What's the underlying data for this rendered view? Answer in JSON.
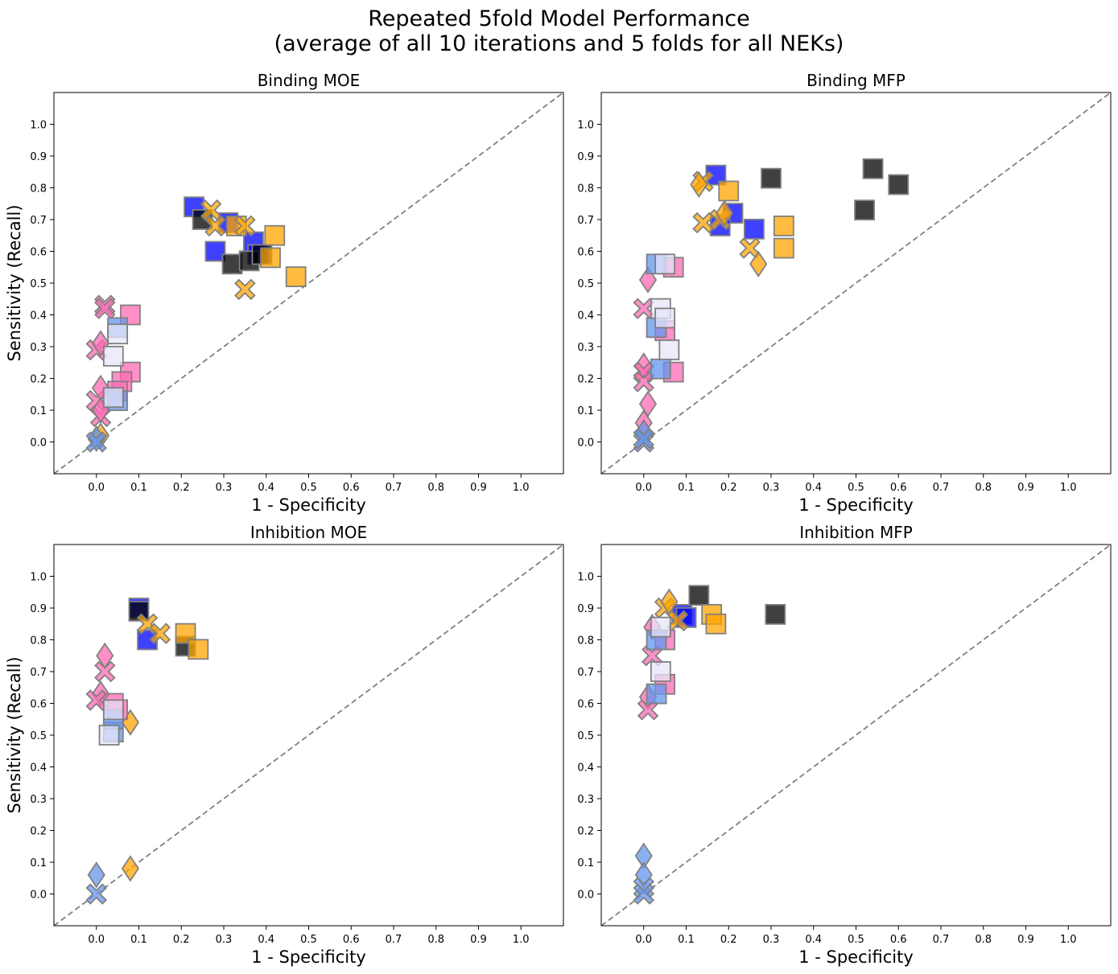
{
  "figure": {
    "title_line1": "Repeated 5fold Model Performance",
    "title_line2": "(average of all 10 iterations and 5 folds for all NEKs)"
  },
  "colors": {
    "blue": "#0000ff",
    "black": "#000000",
    "orange": "#ffa500",
    "pink": "#ff69b4",
    "lightblue": "#6495ed",
    "lavender": "#e6e6fa",
    "marker_edge": "#808080",
    "diagonal": "#808080"
  },
  "chart_data": [
    {
      "type": "scatter",
      "title": "Binding MOE",
      "xlabel": "1 - Specificity",
      "ylabel": "Sensitivity (Recall)",
      "xlim": [
        -0.1,
        1.1
      ],
      "ylim": [
        -0.1,
        1.1
      ],
      "xticks": [
        "0.0",
        "0.1",
        "0.2",
        "0.3",
        "0.4",
        "0.5",
        "0.6",
        "0.7",
        "0.8",
        "0.9",
        "1.0"
      ],
      "yticks": [
        "0.0",
        "0.1",
        "0.2",
        "0.3",
        "0.4",
        "0.5",
        "0.6",
        "0.7",
        "0.8",
        "0.9",
        "1.0"
      ],
      "reference_line": "diagonal y = x, dashed",
      "points": [
        {
          "x": 0.23,
          "y": 0.74,
          "marker": "square",
          "color": "blue"
        },
        {
          "x": 0.31,
          "y": 0.69,
          "marker": "square",
          "color": "blue"
        },
        {
          "x": 0.28,
          "y": 0.6,
          "marker": "square",
          "color": "blue"
        },
        {
          "x": 0.37,
          "y": 0.63,
          "marker": "square",
          "color": "blue"
        },
        {
          "x": 0.38,
          "y": 0.59,
          "marker": "square",
          "color": "blue"
        },
        {
          "x": 0.25,
          "y": 0.7,
          "marker": "square",
          "color": "black"
        },
        {
          "x": 0.32,
          "y": 0.56,
          "marker": "square",
          "color": "black"
        },
        {
          "x": 0.36,
          "y": 0.57,
          "marker": "square",
          "color": "black"
        },
        {
          "x": 0.39,
          "y": 0.59,
          "marker": "square",
          "color": "black"
        },
        {
          "x": 0.42,
          "y": 0.65,
          "marker": "square",
          "color": "orange"
        },
        {
          "x": 0.41,
          "y": 0.58,
          "marker": "square",
          "color": "orange"
        },
        {
          "x": 0.47,
          "y": 0.52,
          "marker": "square",
          "color": "orange"
        },
        {
          "x": 0.33,
          "y": 0.68,
          "marker": "square",
          "color": "orange"
        },
        {
          "x": 0.27,
          "y": 0.73,
          "marker": "x",
          "color": "orange"
        },
        {
          "x": 0.28,
          "y": 0.68,
          "marker": "x",
          "color": "orange"
        },
        {
          "x": 0.35,
          "y": 0.68,
          "marker": "x",
          "color": "orange"
        },
        {
          "x": 0.35,
          "y": 0.48,
          "marker": "x",
          "color": "orange"
        },
        {
          "x": 0.01,
          "y": 0.02,
          "marker": "diamond",
          "color": "orange"
        },
        {
          "x": 0.08,
          "y": 0.4,
          "marker": "square",
          "color": "pink"
        },
        {
          "x": 0.08,
          "y": 0.22,
          "marker": "square",
          "color": "pink"
        },
        {
          "x": 0.06,
          "y": 0.19,
          "marker": "square",
          "color": "pink"
        },
        {
          "x": 0.05,
          "y": 0.16,
          "marker": "square",
          "color": "pink"
        },
        {
          "x": 0.02,
          "y": 0.43,
          "marker": "x",
          "color": "pink"
        },
        {
          "x": 0.02,
          "y": 0.42,
          "marker": "x",
          "color": "pink"
        },
        {
          "x": 0.0,
          "y": 0.29,
          "marker": "x",
          "color": "pink"
        },
        {
          "x": 0.0,
          "y": 0.13,
          "marker": "x",
          "color": "pink"
        },
        {
          "x": 0.01,
          "y": 0.08,
          "marker": "x",
          "color": "pink"
        },
        {
          "x": 0.01,
          "y": 0.31,
          "marker": "diamond",
          "color": "pink"
        },
        {
          "x": 0.01,
          "y": 0.17,
          "marker": "diamond",
          "color": "pink"
        },
        {
          "x": 0.01,
          "y": 0.1,
          "marker": "diamond",
          "color": "pink"
        },
        {
          "x": 0.05,
          "y": 0.36,
          "marker": "square",
          "color": "lightblue"
        },
        {
          "x": 0.04,
          "y": 0.14,
          "marker": "square",
          "color": "lightblue"
        },
        {
          "x": 0.05,
          "y": 0.13,
          "marker": "square",
          "color": "lightblue"
        },
        {
          "x": 0.0,
          "y": 0.01,
          "marker": "diamond",
          "color": "lightblue"
        },
        {
          "x": 0.0,
          "y": 0.0,
          "marker": "x",
          "color": "lightblue"
        },
        {
          "x": 0.05,
          "y": 0.34,
          "marker": "square",
          "color": "lavender"
        },
        {
          "x": 0.04,
          "y": 0.27,
          "marker": "square",
          "color": "lavender"
        },
        {
          "x": 0.04,
          "y": 0.14,
          "marker": "square",
          "color": "lavender"
        }
      ]
    },
    {
      "type": "scatter",
      "title": "Binding MFP",
      "xlabel": "1 - Specificity",
      "ylabel": "",
      "xlim": [
        -0.1,
        1.1
      ],
      "ylim": [
        -0.1,
        1.1
      ],
      "xticks": [
        "0.0",
        "0.1",
        "0.2",
        "0.3",
        "0.4",
        "0.5",
        "0.6",
        "0.7",
        "0.8",
        "0.9",
        "1.0"
      ],
      "yticks": [
        "0.0",
        "0.1",
        "0.2",
        "0.3",
        "0.4",
        "0.5",
        "0.6",
        "0.7",
        "0.8",
        "0.9",
        "1.0"
      ],
      "reference_line": "diagonal y = x, dashed",
      "points": [
        {
          "x": 0.17,
          "y": 0.84,
          "marker": "square",
          "color": "blue"
        },
        {
          "x": 0.21,
          "y": 0.72,
          "marker": "square",
          "color": "blue"
        },
        {
          "x": 0.18,
          "y": 0.68,
          "marker": "square",
          "color": "blue"
        },
        {
          "x": 0.26,
          "y": 0.67,
          "marker": "square",
          "color": "blue"
        },
        {
          "x": 0.3,
          "y": 0.83,
          "marker": "square",
          "color": "black"
        },
        {
          "x": 0.54,
          "y": 0.86,
          "marker": "square",
          "color": "black"
        },
        {
          "x": 0.6,
          "y": 0.81,
          "marker": "square",
          "color": "black"
        },
        {
          "x": 0.52,
          "y": 0.73,
          "marker": "square",
          "color": "black"
        },
        {
          "x": 0.2,
          "y": 0.79,
          "marker": "square",
          "color": "orange"
        },
        {
          "x": 0.33,
          "y": 0.68,
          "marker": "square",
          "color": "orange"
        },
        {
          "x": 0.33,
          "y": 0.61,
          "marker": "square",
          "color": "orange"
        },
        {
          "x": 0.14,
          "y": 0.82,
          "marker": "x",
          "color": "orange"
        },
        {
          "x": 0.14,
          "y": 0.69,
          "marker": "x",
          "color": "orange"
        },
        {
          "x": 0.18,
          "y": 0.7,
          "marker": "x",
          "color": "orange"
        },
        {
          "x": 0.25,
          "y": 0.61,
          "marker": "x",
          "color": "orange"
        },
        {
          "x": 0.13,
          "y": 0.81,
          "marker": "diamond",
          "color": "orange"
        },
        {
          "x": 0.19,
          "y": 0.72,
          "marker": "diamond",
          "color": "orange"
        },
        {
          "x": 0.27,
          "y": 0.56,
          "marker": "diamond",
          "color": "orange"
        },
        {
          "x": 0.07,
          "y": 0.55,
          "marker": "square",
          "color": "pink"
        },
        {
          "x": 0.05,
          "y": 0.35,
          "marker": "square",
          "color": "pink"
        },
        {
          "x": 0.07,
          "y": 0.22,
          "marker": "square",
          "color": "pink"
        },
        {
          "x": 0.01,
          "y": 0.51,
          "marker": "diamond",
          "color": "pink"
        },
        {
          "x": 0.01,
          "y": 0.12,
          "marker": "diamond",
          "color": "pink"
        },
        {
          "x": 0.0,
          "y": 0.24,
          "marker": "diamond",
          "color": "pink"
        },
        {
          "x": 0.0,
          "y": 0.06,
          "marker": "diamond",
          "color": "pink"
        },
        {
          "x": 0.0,
          "y": 0.42,
          "marker": "x",
          "color": "pink"
        },
        {
          "x": 0.0,
          "y": 0.22,
          "marker": "x",
          "color": "pink"
        },
        {
          "x": 0.0,
          "y": 0.19,
          "marker": "x",
          "color": "pink"
        },
        {
          "x": 0.03,
          "y": 0.56,
          "marker": "square",
          "color": "lightblue"
        },
        {
          "x": 0.03,
          "y": 0.36,
          "marker": "square",
          "color": "lightblue"
        },
        {
          "x": 0.04,
          "y": 0.23,
          "marker": "square",
          "color": "lightblue"
        },
        {
          "x": 0.0,
          "y": 0.03,
          "marker": "diamond",
          "color": "lightblue"
        },
        {
          "x": 0.0,
          "y": 0.0,
          "marker": "x",
          "color": "lightblue"
        },
        {
          "x": 0.0,
          "y": 0.01,
          "marker": "x",
          "color": "lightblue"
        },
        {
          "x": 0.05,
          "y": 0.56,
          "marker": "square",
          "color": "lavender"
        },
        {
          "x": 0.04,
          "y": 0.42,
          "marker": "square",
          "color": "lavender"
        },
        {
          "x": 0.05,
          "y": 0.39,
          "marker": "square",
          "color": "lavender"
        },
        {
          "x": 0.06,
          "y": 0.29,
          "marker": "square",
          "color": "lavender"
        }
      ]
    },
    {
      "type": "scatter",
      "title": "Inhibition MOE",
      "xlabel": "1 - Specificity",
      "ylabel": "Sensitivity (Recall)",
      "xlim": [
        -0.1,
        1.1
      ],
      "ylim": [
        -0.1,
        1.1
      ],
      "xticks": [
        "0.0",
        "0.1",
        "0.2",
        "0.3",
        "0.4",
        "0.5",
        "0.6",
        "0.7",
        "0.8",
        "0.9",
        "1.0"
      ],
      "yticks": [
        "0.0",
        "0.1",
        "0.2",
        "0.3",
        "0.4",
        "0.5",
        "0.6",
        "0.7",
        "0.8",
        "0.9",
        "1.0"
      ],
      "reference_line": "diagonal y = x, dashed",
      "points": [
        {
          "x": 0.1,
          "y": 0.9,
          "marker": "square",
          "color": "blue"
        },
        {
          "x": 0.12,
          "y": 0.8,
          "marker": "square",
          "color": "blue"
        },
        {
          "x": 0.1,
          "y": 0.89,
          "marker": "square",
          "color": "black"
        },
        {
          "x": 0.21,
          "y": 0.78,
          "marker": "square",
          "color": "black"
        },
        {
          "x": 0.21,
          "y": 0.82,
          "marker": "square",
          "color": "orange"
        },
        {
          "x": 0.24,
          "y": 0.77,
          "marker": "square",
          "color": "orange"
        },
        {
          "x": 0.12,
          "y": 0.85,
          "marker": "x",
          "color": "orange"
        },
        {
          "x": 0.15,
          "y": 0.82,
          "marker": "x",
          "color": "orange"
        },
        {
          "x": 0.08,
          "y": 0.54,
          "marker": "diamond",
          "color": "orange"
        },
        {
          "x": 0.08,
          "y": 0.08,
          "marker": "diamond",
          "color": "orange"
        },
        {
          "x": 0.04,
          "y": 0.6,
          "marker": "square",
          "color": "pink"
        },
        {
          "x": 0.05,
          "y": 0.58,
          "marker": "square",
          "color": "pink"
        },
        {
          "x": 0.02,
          "y": 0.75,
          "marker": "diamond",
          "color": "pink"
        },
        {
          "x": 0.01,
          "y": 0.63,
          "marker": "diamond",
          "color": "pink"
        },
        {
          "x": 0.02,
          "y": 0.7,
          "marker": "x",
          "color": "pink"
        },
        {
          "x": 0.0,
          "y": 0.61,
          "marker": "x",
          "color": "pink"
        },
        {
          "x": 0.04,
          "y": 0.51,
          "marker": "square",
          "color": "lightblue"
        },
        {
          "x": 0.04,
          "y": 0.55,
          "marker": "square",
          "color": "lightblue"
        },
        {
          "x": 0.0,
          "y": 0.06,
          "marker": "diamond",
          "color": "lightblue"
        },
        {
          "x": 0.0,
          "y": 0.0,
          "marker": "x",
          "color": "lightblue"
        },
        {
          "x": 0.04,
          "y": 0.58,
          "marker": "square",
          "color": "lavender"
        },
        {
          "x": 0.03,
          "y": 0.5,
          "marker": "square",
          "color": "lavender"
        }
      ]
    },
    {
      "type": "scatter",
      "title": "Inhibition MFP",
      "xlabel": "1 - Specificity",
      "ylabel": "",
      "xlim": [
        -0.1,
        1.1
      ],
      "ylim": [
        -0.1,
        1.1
      ],
      "xticks": [
        "0.0",
        "0.1",
        "0.2",
        "0.3",
        "0.4",
        "0.5",
        "0.6",
        "0.7",
        "0.8",
        "0.9",
        "1.0"
      ],
      "yticks": [
        "0.0",
        "0.1",
        "0.2",
        "0.3",
        "0.4",
        "0.5",
        "0.6",
        "0.7",
        "0.8",
        "0.9",
        "1.0"
      ],
      "reference_line": "diagonal y = x, dashed",
      "points": [
        {
          "x": 0.09,
          "y": 0.88,
          "marker": "square",
          "color": "blue"
        },
        {
          "x": 0.1,
          "y": 0.87,
          "marker": "square",
          "color": "blue"
        },
        {
          "x": 0.13,
          "y": 0.94,
          "marker": "square",
          "color": "black"
        },
        {
          "x": 0.31,
          "y": 0.88,
          "marker": "square",
          "color": "black"
        },
        {
          "x": 0.16,
          "y": 0.88,
          "marker": "square",
          "color": "orange"
        },
        {
          "x": 0.17,
          "y": 0.85,
          "marker": "square",
          "color": "orange"
        },
        {
          "x": 0.05,
          "y": 0.9,
          "marker": "x",
          "color": "orange"
        },
        {
          "x": 0.08,
          "y": 0.86,
          "marker": "x",
          "color": "orange"
        },
        {
          "x": 0.06,
          "y": 0.92,
          "marker": "diamond",
          "color": "orange"
        },
        {
          "x": 0.05,
          "y": 0.8,
          "marker": "square",
          "color": "pink"
        },
        {
          "x": 0.05,
          "y": 0.66,
          "marker": "square",
          "color": "pink"
        },
        {
          "x": 0.02,
          "y": 0.84,
          "marker": "diamond",
          "color": "pink"
        },
        {
          "x": 0.01,
          "y": 0.62,
          "marker": "diamond",
          "color": "pink"
        },
        {
          "x": 0.02,
          "y": 0.75,
          "marker": "x",
          "color": "pink"
        },
        {
          "x": 0.01,
          "y": 0.58,
          "marker": "x",
          "color": "pink"
        },
        {
          "x": 0.03,
          "y": 0.8,
          "marker": "square",
          "color": "lightblue"
        },
        {
          "x": 0.03,
          "y": 0.63,
          "marker": "square",
          "color": "lightblue"
        },
        {
          "x": 0.0,
          "y": 0.12,
          "marker": "diamond",
          "color": "lightblue"
        },
        {
          "x": 0.0,
          "y": 0.06,
          "marker": "diamond",
          "color": "lightblue"
        },
        {
          "x": 0.0,
          "y": 0.02,
          "marker": "x",
          "color": "lightblue"
        },
        {
          "x": 0.0,
          "y": 0.0,
          "marker": "x",
          "color": "lightblue"
        },
        {
          "x": 0.04,
          "y": 0.84,
          "marker": "square",
          "color": "lavender"
        },
        {
          "x": 0.04,
          "y": 0.7,
          "marker": "square",
          "color": "lavender"
        }
      ]
    }
  ]
}
